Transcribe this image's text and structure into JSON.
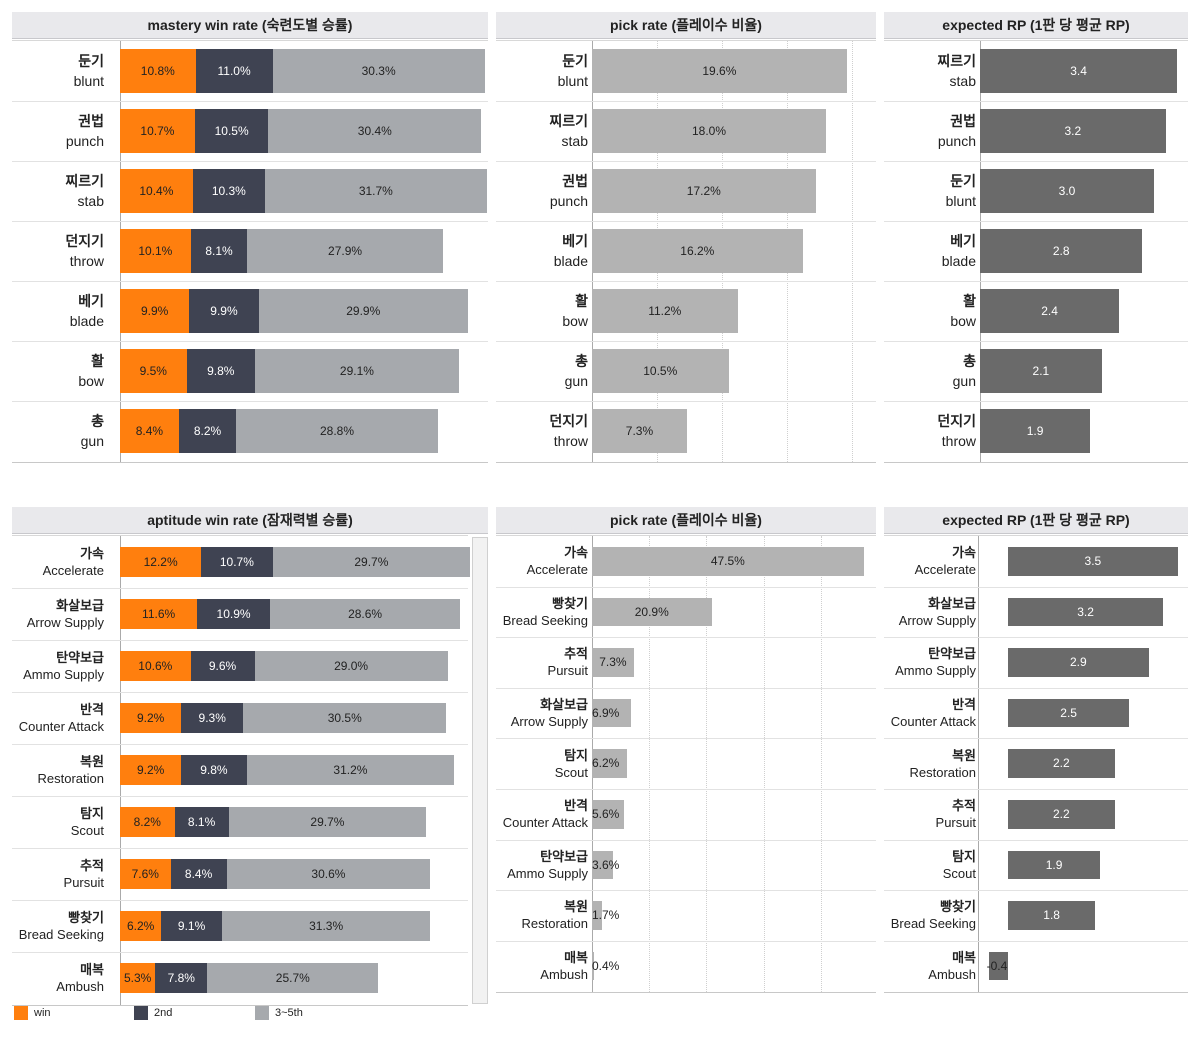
{
  "colors": {
    "win": "#ff7f0e",
    "second": "#3f4352",
    "third": "#a6a9ad",
    "pick": "#b3b3b3",
    "rp": "#6a6a6a"
  },
  "legend": [
    {
      "key": "win",
      "label": "win",
      "color": "#ff7f0e"
    },
    {
      "key": "second",
      "label": "2nd",
      "color": "#3f4352"
    },
    {
      "key": "third",
      "label": "3~5th",
      "color": "#a6a9ad"
    }
  ],
  "chart_data": [
    {
      "id": "mastery_win",
      "type": "bar",
      "title": "mastery win rate (숙련도별 승률)",
      "stacked": true,
      "categories": [
        {
          "ko": "둔기",
          "en": "blunt"
        },
        {
          "ko": "권법",
          "en": "punch"
        },
        {
          "ko": "찌르기",
          "en": "stab"
        },
        {
          "ko": "던지기",
          "en": "throw"
        },
        {
          "ko": "베기",
          "en": "blade"
        },
        {
          "ko": "활",
          "en": "bow"
        },
        {
          "ko": "총",
          "en": "gun"
        }
      ],
      "series": [
        {
          "name": "win",
          "values": [
            10.8,
            10.7,
            10.4,
            10.1,
            9.9,
            9.5,
            8.4
          ]
        },
        {
          "name": "2nd",
          "values": [
            11.0,
            10.5,
            10.3,
            8.1,
            9.9,
            9.8,
            8.2
          ]
        },
        {
          "name": "3~5th",
          "values": [
            30.3,
            30.4,
            31.7,
            27.9,
            29.9,
            29.1,
            28.8
          ]
        }
      ],
      "unit": "%"
    },
    {
      "id": "mastery_pick",
      "type": "bar",
      "title": "pick rate (플레이수 비율)",
      "categories": [
        {
          "ko": "둔기",
          "en": "blunt"
        },
        {
          "ko": "찌르기",
          "en": "stab"
        },
        {
          "ko": "권법",
          "en": "punch"
        },
        {
          "ko": "베기",
          "en": "blade"
        },
        {
          "ko": "활",
          "en": "bow"
        },
        {
          "ko": "총",
          "en": "gun"
        },
        {
          "ko": "던지기",
          "en": "throw"
        }
      ],
      "values": [
        19.6,
        18.0,
        17.2,
        16.2,
        11.2,
        10.5,
        7.3
      ],
      "unit": "%"
    },
    {
      "id": "mastery_rp",
      "type": "bar",
      "title": "expected RP (1판 당 평균 RP)",
      "categories": [
        {
          "ko": "찌르기",
          "en": "stab"
        },
        {
          "ko": "권법",
          "en": "punch"
        },
        {
          "ko": "둔기",
          "en": "blunt"
        },
        {
          "ko": "베기",
          "en": "blade"
        },
        {
          "ko": "활",
          "en": "bow"
        },
        {
          "ko": "총",
          "en": "gun"
        },
        {
          "ko": "던지기",
          "en": "throw"
        }
      ],
      "values": [
        3.4,
        3.2,
        3.0,
        2.8,
        2.4,
        2.1,
        1.9
      ],
      "unit": ""
    },
    {
      "id": "aptitude_win",
      "type": "bar",
      "title": "aptitude win rate (잠재력별 승률)",
      "stacked": true,
      "categories": [
        {
          "ko": "가속",
          "en": "Accelerate"
        },
        {
          "ko": "화살보급",
          "en": "Arrow Supply"
        },
        {
          "ko": "탄약보급",
          "en": "Ammo Supply"
        },
        {
          "ko": "반격",
          "en": "Counter Attack"
        },
        {
          "ko": "복원",
          "en": "Restoration"
        },
        {
          "ko": "탐지",
          "en": "Scout"
        },
        {
          "ko": "추적",
          "en": "Pursuit"
        },
        {
          "ko": "빵찾기",
          "en": "Bread Seeking"
        },
        {
          "ko": "매복",
          "en": "Ambush"
        }
      ],
      "series": [
        {
          "name": "win",
          "values": [
            12.2,
            11.6,
            10.6,
            9.2,
            9.2,
            8.2,
            7.6,
            6.2,
            5.3
          ]
        },
        {
          "name": "2nd",
          "values": [
            10.7,
            10.9,
            9.6,
            9.3,
            9.8,
            8.1,
            8.4,
            9.1,
            7.8
          ]
        },
        {
          "name": "3~5th",
          "values": [
            29.7,
            28.6,
            29.0,
            30.5,
            31.2,
            29.7,
            30.6,
            31.3,
            25.7
          ]
        }
      ],
      "unit": "%"
    },
    {
      "id": "aptitude_pick",
      "type": "bar",
      "title": "pick rate (플레이수 비율)",
      "categories": [
        {
          "ko": "가속",
          "en": "Accelerate"
        },
        {
          "ko": "빵찾기",
          "en": "Bread Seeking"
        },
        {
          "ko": "추적",
          "en": "Pursuit"
        },
        {
          "ko": "화살보급",
          "en": "Arrow Supply"
        },
        {
          "ko": "탐지",
          "en": "Scout"
        },
        {
          "ko": "반격",
          "en": "Counter Attack"
        },
        {
          "ko": "탄약보급",
          "en": "Ammo Supply"
        },
        {
          "ko": "복원",
          "en": "Restoration"
        },
        {
          "ko": "매복",
          "en": "Ambush"
        }
      ],
      "values": [
        47.5,
        20.9,
        7.3,
        6.9,
        6.2,
        5.6,
        3.6,
        1.7,
        0.4
      ],
      "unit": "%"
    },
    {
      "id": "aptitude_rp",
      "type": "bar",
      "title": "expected RP (1판 당 평균 RP)",
      "categories": [
        {
          "ko": "가속",
          "en": "Accelerate"
        },
        {
          "ko": "화살보급",
          "en": "Arrow Supply"
        },
        {
          "ko": "탄약보급",
          "en": "Ammo Supply"
        },
        {
          "ko": "반격",
          "en": "Counter Attack"
        },
        {
          "ko": "복원",
          "en": "Restoration"
        },
        {
          "ko": "추적",
          "en": "Pursuit"
        },
        {
          "ko": "탐지",
          "en": "Scout"
        },
        {
          "ko": "빵찾기",
          "en": "Bread Seeking"
        },
        {
          "ko": "매복",
          "en": "Ambush"
        }
      ],
      "values": [
        3.5,
        3.2,
        2.9,
        2.5,
        2.2,
        2.2,
        1.9,
        1.8,
        -0.4
      ],
      "unit": ""
    }
  ]
}
